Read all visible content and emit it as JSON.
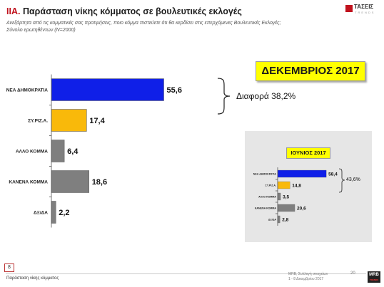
{
  "header": {
    "title_prefix": "ΙΙΑ.",
    "title": "Παράσταση νίκης κόμματος σε βουλευτικές εκλογές",
    "subtitle_line1": "Ανεξάρτητα από τις κομματικές σας προτιμήσεις, ποιο κόμμα πιστεύετε ότι θα κερδίσει στις επερχόμενες Βουλευτικές Εκλογές;",
    "subtitle_line2": "Σύνολο ερωτηθέντων (N=2000)",
    "logo_text": "ΤΑΣΕΙΣ",
    "logo_sub": "TRENDS"
  },
  "main_panel": {
    "period_label": "ΔΕΚΕΜΒΡΙΟΣ 2017",
    "difference_label": "Διαφορά 38,2%"
  },
  "inset_panel": {
    "period_label": "ΙΟΥΝΙΟΣ 2017",
    "difference_label": "43,6%"
  },
  "footer": {
    "page_number": "8",
    "section_text": "Παράσταση νίκης κόμματος",
    "right_line1": "MRB, Συλλογή στοιχείων",
    "right_line2": "1 - 8 Δεκεμβρίου 2017",
    "right_number": "20",
    "brand": "MRB",
    "brand_sub": "TRENDS"
  },
  "colors": {
    "nd_blue": "#0f1fe8",
    "syriza_yellow": "#f9b90a",
    "other_grey": "#7f7f7f",
    "highlight_yellow": "#ffff00",
    "title_red": "#c0121d"
  },
  "chart_data": [
    {
      "type": "bar",
      "orientation": "horizontal",
      "title": "ΔΕΚΕΜΒΡΙΟΣ 2017",
      "categories": [
        "ΝΕΑ ΔΗΜΟΚΡΑΤΙΑ",
        "ΣΥ.ΡΙΖ.Α.",
        "ΑΛΛΟ ΚΟΜΜΑ",
        "ΚΑΝΕΝΑ ΚΟΜΜΑ",
        "ΔΞ/ΔΑ"
      ],
      "values": [
        55.6,
        17.4,
        6.4,
        18.6,
        2.2
      ],
      "value_labels": [
        "55,6",
        "17,4",
        "6,4",
        "18,6",
        "2,2"
      ],
      "bar_colors": [
        "#0f1fe8",
        "#f9b90a",
        "#7f7f7f",
        "#7f7f7f",
        "#7f7f7f"
      ],
      "xlim": [
        0,
        60
      ],
      "grid": false,
      "annotation": "Διαφορά 38,2%"
    },
    {
      "type": "bar",
      "orientation": "horizontal",
      "title": "ΙΟΥΝΙΟΣ 2017",
      "categories": [
        "ΝΕΑ ΔΗΜΟΚΡΑΤΙΑ",
        "ΣΥ.ΡΙΖ.Α.",
        "ΑΛΛΟ ΚΟΜΜΑ",
        "ΚΑΝΕΝΑ ΚΟΜΜΑ",
        "ΔΞ/ΔΑ"
      ],
      "values": [
        58.4,
        14.8,
        3.5,
        20.6,
        2.8
      ],
      "value_labels": [
        "58,4",
        "14,8",
        "3,5",
        "20,6",
        "2,8"
      ],
      "bar_colors": [
        "#0f1fe8",
        "#f9b90a",
        "#7f7f7f",
        "#7f7f7f",
        "#7f7f7f"
      ],
      "xlim": [
        0,
        60
      ],
      "grid": false,
      "annotation": "43,6%"
    }
  ]
}
